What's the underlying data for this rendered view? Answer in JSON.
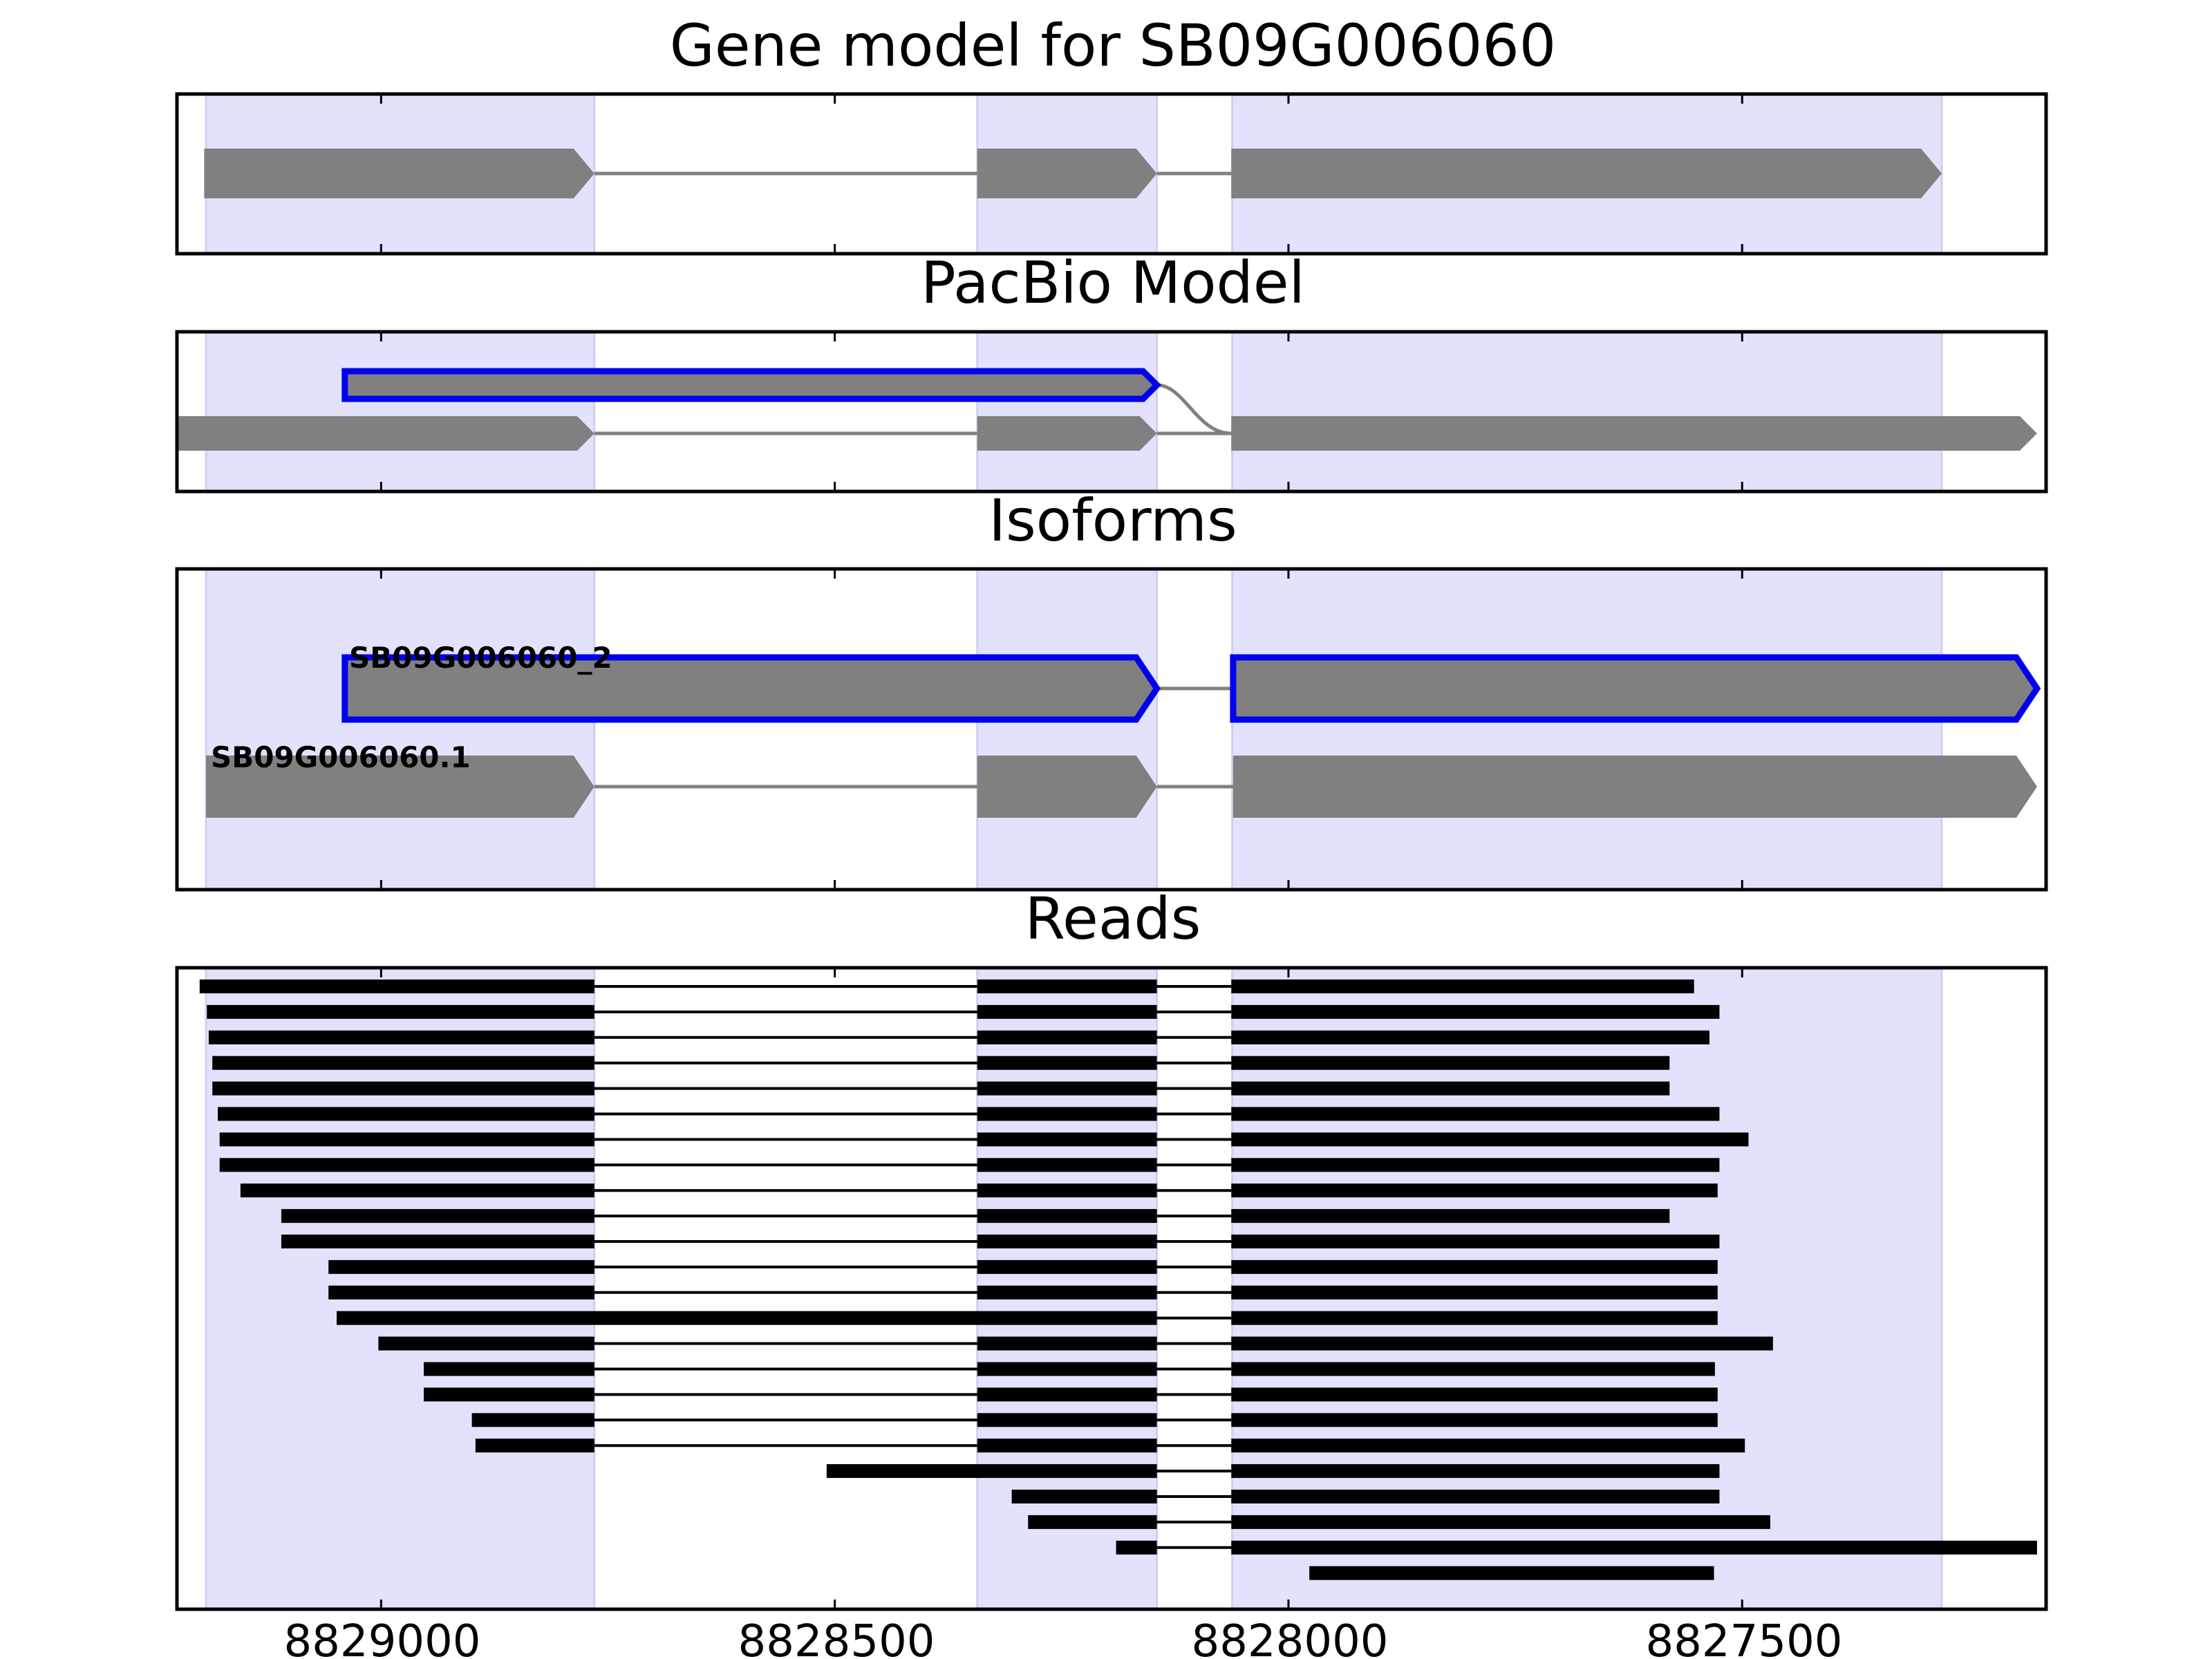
{
  "panels": {
    "gene_model": {
      "title": "Gene model for SB09G006060"
    },
    "pacbio": {
      "title": "PacBio Model"
    },
    "isoforms": {
      "title": "Isoforms",
      "labels": [
        "SB09G006060_2",
        "SB09G006060.1"
      ]
    },
    "reads": {
      "title": "Reads"
    }
  },
  "axis": {
    "ticks": [
      8829000,
      8828500,
      8828000,
      8827500
    ],
    "tick_labels": [
      "8829000",
      "8828500",
      "8828000",
      "8827500"
    ],
    "xlim": [
      8829225,
      8827165
    ]
  },
  "colors": {
    "exon_fill": "#808080",
    "highlight_outline": "#0000ee",
    "region_shade": "#e2e2fc",
    "read_color": "#000000",
    "intron_line": "#808080"
  },
  "chart_data": {
    "type": "gene-track",
    "shaded_exon_regions": [
      [
        8829193,
        8828765
      ],
      [
        8828343,
        8828145
      ],
      [
        8828062,
        8827280
      ]
    ],
    "gene_model": [
      [
        8829195,
        8828765
      ],
      [
        8828343,
        8828145
      ],
      [
        8828063,
        8827280
      ]
    ],
    "pacbio_model": {
      "highlighted": [
        [
          8829040,
          8828145
        ]
      ],
      "main": [
        [
          8829225,
          8828765
        ],
        [
          8828343,
          8828145
        ],
        [
          8828063,
          8827175
        ]
      ]
    },
    "isoforms": [
      {
        "name": "SB09G006060_2",
        "highlighted": true,
        "exons": [
          [
            8829040,
            8828145
          ],
          [
            8828061,
            8827175
          ]
        ]
      },
      {
        "name": "SB09G006060.1",
        "highlighted": false,
        "exons": [
          [
            8829193,
            8828765
          ],
          [
            8828343,
            8828145
          ],
          [
            8828061,
            8827175
          ]
        ]
      }
    ],
    "reads": [
      [
        [
          8829200,
          8828765
        ],
        [
          8828343,
          8828145
        ],
        [
          8828063,
          8827553
        ]
      ],
      [
        [
          8829192,
          8828765
        ],
        [
          8828343,
          8828145
        ],
        [
          8828063,
          8827525
        ]
      ],
      [
        [
          8829190,
          8828765
        ],
        [
          8828343,
          8828145
        ],
        [
          8828063,
          8827536
        ]
      ],
      [
        [
          8829186,
          8828765
        ],
        [
          8828343,
          8828145
        ],
        [
          8828063,
          8827580
        ]
      ],
      [
        [
          8829186,
          8828765
        ],
        [
          8828343,
          8828145
        ],
        [
          8828063,
          8827580
        ]
      ],
      [
        [
          8829180,
          8828765
        ],
        [
          8828343,
          8828145
        ],
        [
          8828063,
          8827525
        ]
      ],
      [
        [
          8829178,
          8828765
        ],
        [
          8828343,
          8828145
        ],
        [
          8828063,
          8827493
        ]
      ],
      [
        [
          8829178,
          8828765
        ],
        [
          8828343,
          8828145
        ],
        [
          8828063,
          8827525
        ]
      ],
      [
        [
          8829155,
          8828765
        ],
        [
          8828343,
          8828145
        ],
        [
          8828063,
          8827527
        ]
      ],
      [
        [
          8829110,
          8828765
        ],
        [
          8828343,
          8828145
        ],
        [
          8828063,
          8827580
        ]
      ],
      [
        [
          8829110,
          8828765
        ],
        [
          8828343,
          8828145
        ],
        [
          8828063,
          8827525
        ]
      ],
      [
        [
          8829058,
          8828765
        ],
        [
          8828343,
          8828145
        ],
        [
          8828063,
          8827527
        ]
      ],
      [
        [
          8829058,
          8828765
        ],
        [
          8828343,
          8828145
        ],
        [
          8828063,
          8827527
        ]
      ],
      [
        [
          8829049,
          8828145
        ],
        [
          8828063,
          8827527
        ]
      ],
      [
        [
          8829003,
          8828765
        ],
        [
          8828343,
          8828145
        ],
        [
          8828063,
          8827466
        ]
      ],
      [
        [
          8828953,
          8828765
        ],
        [
          8828343,
          8828145
        ],
        [
          8828063,
          8827530
        ]
      ],
      [
        [
          8828953,
          8828765
        ],
        [
          8828343,
          8828145
        ],
        [
          8828063,
          8827527
        ]
      ],
      [
        [
          8828900,
          8828765
        ],
        [
          8828343,
          8828145
        ],
        [
          8828063,
          8827527
        ]
      ],
      [
        [
          8828896,
          8828765
        ],
        [
          8828343,
          8828145
        ],
        [
          8828063,
          8827497
        ]
      ],
      [
        [
          8828509,
          8828145
        ],
        [
          8828063,
          8827525
        ]
      ],
      [
        [
          8828305,
          8828145
        ],
        [
          8828063,
          8827525
        ]
      ],
      [
        [
          8828287,
          8828145
        ],
        [
          8828063,
          8827469
        ]
      ],
      [
        [
          8828190,
          8828145
        ],
        [
          8828063,
          8827175
        ]
      ],
      [
        [
          8827977,
          8827531
        ]
      ]
    ]
  }
}
